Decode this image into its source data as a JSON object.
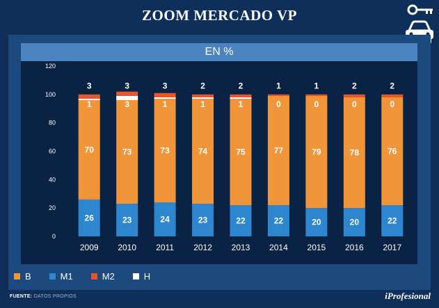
{
  "header": {
    "title": "ZOOM MERCADO VP"
  },
  "icons": {
    "key": "key-icon",
    "car": "car-icon"
  },
  "chart_data": {
    "type": "bar",
    "stacked": true,
    "title": "EN %",
    "categories": [
      "2009",
      "2010",
      "2011",
      "2012",
      "2013",
      "2014",
      "2015",
      "2016",
      "2017"
    ],
    "series": [
      {
        "name": "M1",
        "color": "#2e86cf",
        "values": [
          26,
          23,
          24,
          23,
          22,
          22,
          20,
          20,
          22
        ]
      },
      {
        "name": "B",
        "color": "#f0953a",
        "values": [
          70,
          73,
          73,
          74,
          75,
          77,
          79,
          78,
          76
        ]
      },
      {
        "name": "H",
        "color": "#ffffff",
        "values": [
          1,
          3,
          1,
          1,
          1,
          0,
          0,
          0,
          0
        ]
      },
      {
        "name": "M2",
        "color": "#e8552a",
        "values": [
          3,
          3,
          3,
          2,
          2,
          1,
          1,
          2,
          2
        ]
      }
    ],
    "ylim": [
      0,
      120
    ],
    "yticks": [
      0,
      20,
      40,
      60,
      80,
      100,
      120
    ],
    "legend": [
      {
        "name": "B",
        "color": "#f0953a"
      },
      {
        "name": "M1",
        "color": "#2e86cf"
      },
      {
        "name": "M2",
        "color": "#e8552a"
      },
      {
        "name": "H",
        "color": "#ffffff"
      }
    ]
  },
  "footer": {
    "source_label": "FUENTE:",
    "source_text": "DATOS PROPIOS",
    "brand": "iProfesional"
  }
}
